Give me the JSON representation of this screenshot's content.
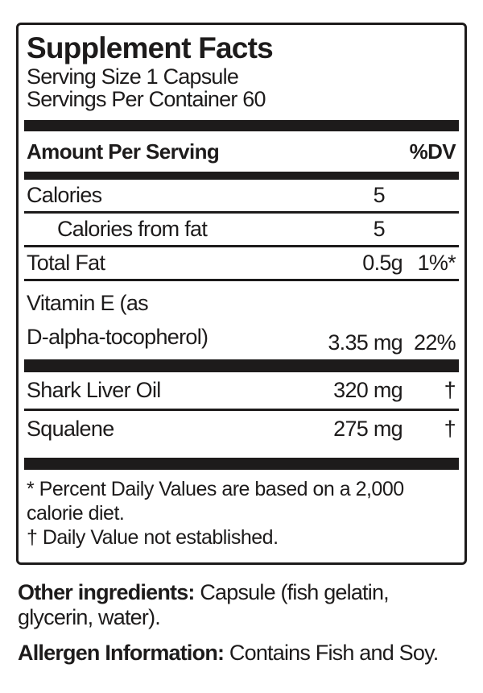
{
  "facts": {
    "title": "Supplement Facts",
    "serving_size": "Serving Size 1 Capsule",
    "servings_per_container": "Servings Per Container 60",
    "header": {
      "amount_per_serving": "Amount Per Serving",
      "dv": "%DV"
    },
    "rows": [
      {
        "name": "Calories",
        "amount": "5",
        "dv": ""
      },
      {
        "name": "Calories from fat",
        "amount": "5",
        "dv": ""
      },
      {
        "name": "Total Fat",
        "amount": "0.5g",
        "dv": "1%*"
      },
      {
        "name_line1": "Vitamin E (as",
        "name_line2": "D-alpha-tocopherol)",
        "amount": "3.35 mg",
        "dv": "22%"
      },
      {
        "name": "Shark Liver Oil",
        "amount": "320 mg",
        "dv": "†"
      },
      {
        "name": "Squalene",
        "amount": "275 mg",
        "dv": "†"
      }
    ],
    "footnotes": {
      "asterisk_line1": "* Percent Daily Values are based on a 2,000",
      "asterisk_line2": "calorie diet.",
      "dagger": "† Daily Value not established."
    },
    "colors": {
      "ink": "#1d1b1b",
      "background": "#ffffff"
    }
  },
  "other_ingredients": {
    "label": "Other ingredients:",
    "text_line1": " Capsule (fish gelatin,",
    "text_line2": "glycerin, water)."
  },
  "allergen": {
    "label": "Allergen Information:",
    "text": " Contains Fish and Soy."
  }
}
